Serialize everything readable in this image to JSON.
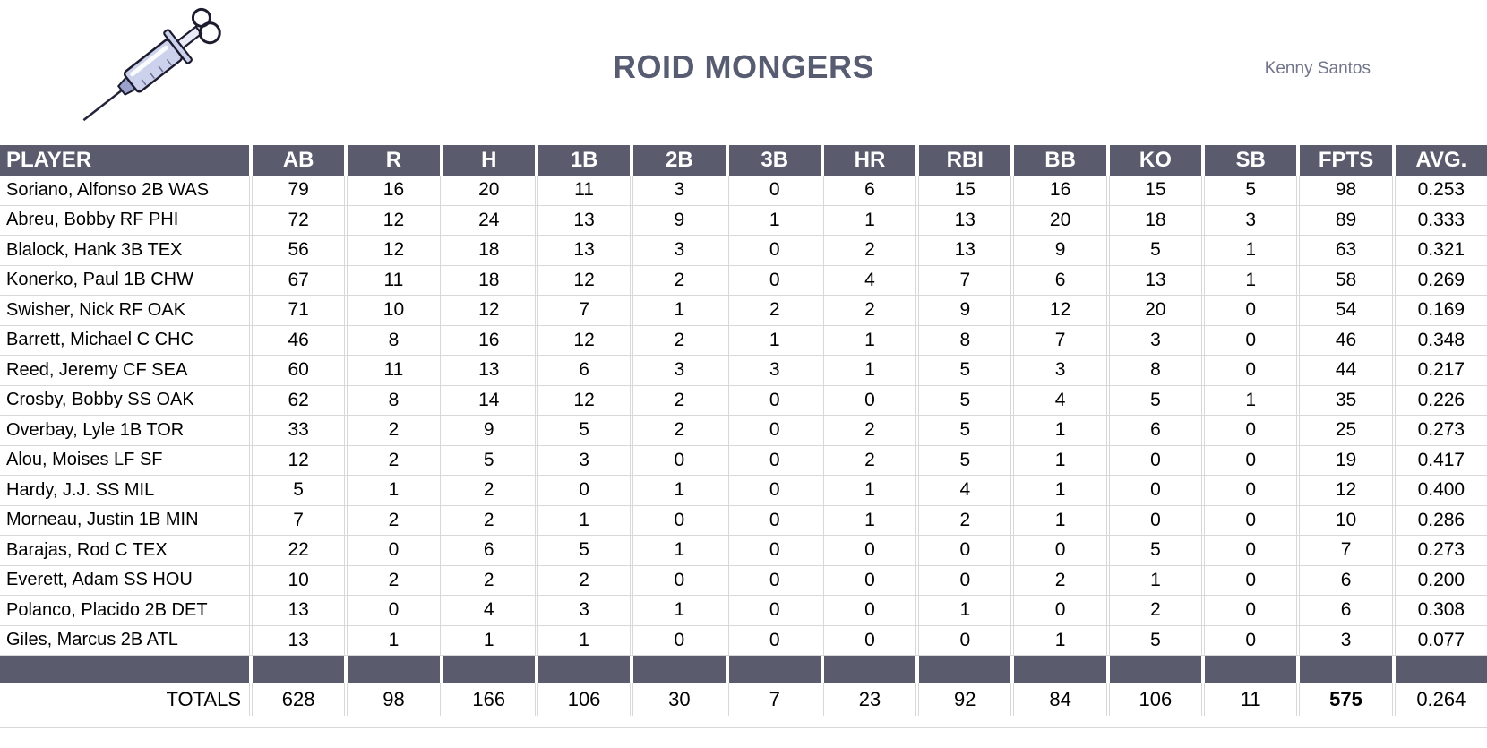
{
  "header": {
    "title": "ROID MONGERS",
    "owner": "Kenny Santos",
    "logo_icon": "syringe-icon"
  },
  "colors": {
    "header_bg": "#5a5c6e",
    "title_text": "#575c71",
    "owner_text": "#70758a",
    "grid_line": "#d8d8d8"
  },
  "table": {
    "columns": [
      "PLAYER",
      "AB",
      "R",
      "H",
      "1B",
      "2B",
      "3B",
      "HR",
      "RBI",
      "BB",
      "KO",
      "SB",
      "FPTS",
      "AVG."
    ],
    "rows": [
      {
        "player": "Soriano, Alfonso 2B WAS",
        "stats": [
          79,
          16,
          20,
          11,
          3,
          0,
          6,
          15,
          16,
          15,
          5,
          98,
          "0.253"
        ]
      },
      {
        "player": "Abreu, Bobby RF PHI",
        "stats": [
          72,
          12,
          24,
          13,
          9,
          1,
          1,
          13,
          20,
          18,
          3,
          89,
          "0.333"
        ]
      },
      {
        "player": "Blalock, Hank 3B TEX",
        "stats": [
          56,
          12,
          18,
          13,
          3,
          0,
          2,
          13,
          9,
          5,
          1,
          63,
          "0.321"
        ]
      },
      {
        "player": "Konerko, Paul 1B CHW",
        "stats": [
          67,
          11,
          18,
          12,
          2,
          0,
          4,
          7,
          6,
          13,
          1,
          58,
          "0.269"
        ]
      },
      {
        "player": "Swisher, Nick RF OAK",
        "stats": [
          71,
          10,
          12,
          7,
          1,
          2,
          2,
          9,
          12,
          20,
          0,
          54,
          "0.169"
        ]
      },
      {
        "player": "Barrett, Michael C CHC",
        "stats": [
          46,
          8,
          16,
          12,
          2,
          1,
          1,
          8,
          7,
          3,
          0,
          46,
          "0.348"
        ]
      },
      {
        "player": "Reed, Jeremy CF SEA",
        "stats": [
          60,
          11,
          13,
          6,
          3,
          3,
          1,
          5,
          3,
          8,
          0,
          44,
          "0.217"
        ]
      },
      {
        "player": "Crosby, Bobby SS OAK",
        "stats": [
          62,
          8,
          14,
          12,
          2,
          0,
          0,
          5,
          4,
          5,
          1,
          35,
          "0.226"
        ]
      },
      {
        "player": "Overbay, Lyle 1B TOR",
        "stats": [
          33,
          2,
          9,
          5,
          2,
          0,
          2,
          5,
          1,
          6,
          0,
          25,
          "0.273"
        ]
      },
      {
        "player": "Alou, Moises LF SF",
        "stats": [
          12,
          2,
          5,
          3,
          0,
          0,
          2,
          5,
          1,
          0,
          0,
          19,
          "0.417"
        ]
      },
      {
        "player": "Hardy, J.J. SS MIL",
        "stats": [
          5,
          1,
          2,
          0,
          1,
          0,
          1,
          4,
          1,
          0,
          0,
          12,
          "0.400"
        ]
      },
      {
        "player": "Morneau, Justin 1B MIN",
        "stats": [
          7,
          2,
          2,
          1,
          0,
          0,
          1,
          2,
          1,
          0,
          0,
          10,
          "0.286"
        ]
      },
      {
        "player": "Barajas, Rod C TEX",
        "stats": [
          22,
          0,
          6,
          5,
          1,
          0,
          0,
          0,
          0,
          5,
          0,
          7,
          "0.273"
        ]
      },
      {
        "player": "Everett, Adam SS HOU",
        "stats": [
          10,
          2,
          2,
          2,
          0,
          0,
          0,
          0,
          2,
          1,
          0,
          6,
          "0.200"
        ]
      },
      {
        "player": "Polanco, Placido 2B DET",
        "stats": [
          13,
          0,
          4,
          3,
          1,
          0,
          0,
          1,
          0,
          2,
          0,
          6,
          "0.308"
        ]
      },
      {
        "player": "Giles, Marcus 2B ATL",
        "stats": [
          13,
          1,
          1,
          1,
          0,
          0,
          0,
          0,
          1,
          5,
          0,
          3,
          "0.077"
        ]
      }
    ],
    "totals": {
      "label": "TOTALS",
      "stats": [
        628,
        98,
        166,
        106,
        30,
        7,
        23,
        92,
        84,
        106,
        11,
        575,
        "0.264"
      ],
      "bold_stat": "FPTS"
    }
  }
}
